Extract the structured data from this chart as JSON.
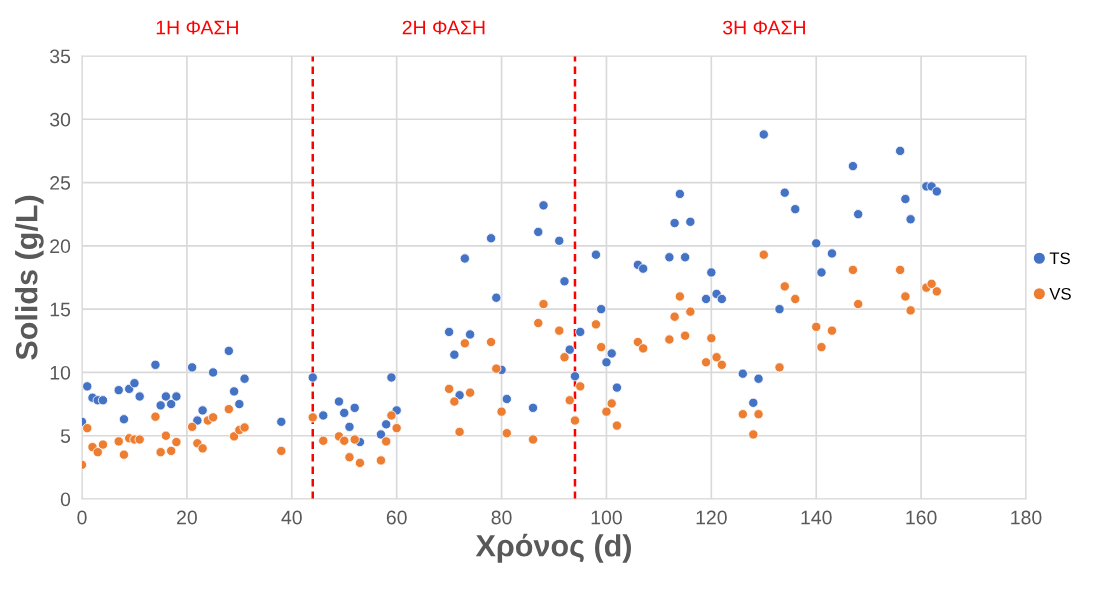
{
  "chart_data": {
    "type": "scatter",
    "xlabel": "Χρόνος (d)",
    "ylabel": "Solids (g/L)",
    "xlim": [
      0,
      180
    ],
    "xticks": [
      0,
      20,
      40,
      60,
      80,
      100,
      120,
      140,
      160,
      180
    ],
    "ylim": [
      0,
      35
    ],
    "yticks": [
      0,
      5,
      10,
      15,
      20,
      25,
      30,
      35
    ],
    "grid": true,
    "legend": "right",
    "marker": "circle",
    "annotations": [
      "1Η ΦΑΣΗ",
      "2Η ΦΑΣΗ",
      "3Η ΦΑΣΗ"
    ],
    "ref_lines": [
      {
        "axis": "x",
        "value": 44,
        "color": "#ff0000",
        "line_style": "dashed"
      },
      {
        "axis": "x",
        "value": 94,
        "color": "#ff0000",
        "line_style": "dashed"
      }
    ],
    "series": [
      {
        "name": "TS",
        "color": "#4472c4",
        "x": [
          0,
          1,
          2,
          3,
          4,
          7,
          8,
          9,
          10,
          11,
          14,
          15,
          16,
          17,
          18,
          21,
          22,
          23,
          25,
          28,
          29,
          30,
          31,
          38,
          44,
          46,
          49,
          50,
          51,
          52,
          53,
          57,
          58,
          59,
          60,
          70,
          71,
          72,
          73,
          74,
          78,
          79,
          80,
          81,
          86,
          87,
          88,
          91,
          92,
          93,
          94,
          95,
          98,
          99,
          100,
          101,
          102,
          106,
          107,
          112,
          113,
          114,
          115,
          116,
          119,
          120,
          121,
          122,
          126,
          128,
          129,
          130,
          133,
          134,
          136,
          140,
          141,
          143,
          147,
          148,
          156,
          157,
          158,
          161,
          162,
          163
        ],
        "values": [
          6.1,
          8.9,
          8.0,
          7.8,
          7.8,
          8.6,
          6.3,
          8.7,
          9.15,
          8.1,
          10.6,
          7.4,
          8.1,
          7.5,
          8.1,
          10.4,
          6.2,
          7.0,
          10.0,
          11.7,
          8.5,
          7.5,
          9.5,
          6.1,
          9.6,
          6.6,
          7.7,
          6.8,
          5.7,
          7.2,
          4.5,
          5.1,
          5.9,
          9.6,
          7.0,
          13.2,
          11.4,
          8.2,
          19.0,
          13.0,
          20.6,
          15.9,
          10.2,
          7.9,
          7.2,
          21.1,
          23.2,
          20.4,
          17.2,
          11.8,
          9.7,
          13.2,
          19.3,
          15.0,
          10.8,
          11.5,
          8.8,
          18.5,
          18.2,
          19.1,
          21.8,
          24.1,
          19.1,
          21.9,
          15.8,
          17.9,
          16.2,
          15.8,
          9.9,
          7.6,
          9.5,
          28.8,
          15.0,
          24.2,
          22.9,
          20.2,
          17.9,
          19.4,
          26.3,
          22.5,
          27.5,
          23.7,
          22.1,
          24.7,
          24.7,
          24.3
        ]
      },
      {
        "name": "VS",
        "color": "#ed7d31",
        "x": [
          0,
          1,
          2,
          3,
          4,
          7,
          8,
          9,
          10,
          11,
          14,
          15,
          16,
          17,
          18,
          21,
          22,
          23,
          24,
          25,
          28,
          29,
          30,
          31,
          38,
          44,
          46,
          49,
          50,
          51,
          52,
          53,
          57,
          58,
          59,
          60,
          70,
          71,
          72,
          73,
          74,
          78,
          79,
          80,
          81,
          86,
          87,
          88,
          91,
          92,
          93,
          94,
          95,
          98,
          99,
          100,
          101,
          102,
          106,
          107,
          112,
          113,
          114,
          115,
          116,
          119,
          120,
          121,
          122,
          126,
          128,
          129,
          130,
          133,
          134,
          136,
          140,
          141,
          143,
          147,
          148,
          156,
          157,
          158,
          161,
          162,
          163
        ],
        "values": [
          2.7,
          5.6,
          4.1,
          3.7,
          4.3,
          4.55,
          3.5,
          4.8,
          4.7,
          4.7,
          6.5,
          3.7,
          5.0,
          3.8,
          4.5,
          5.7,
          4.4,
          4.0,
          6.2,
          6.45,
          7.1,
          4.95,
          5.45,
          5.65,
          3.8,
          6.45,
          4.6,
          4.95,
          4.6,
          3.3,
          4.7,
          2.85,
          3.05,
          4.55,
          6.6,
          5.6,
          8.7,
          7.7,
          5.3,
          12.3,
          8.4,
          12.4,
          10.3,
          6.9,
          5.2,
          4.7,
          13.9,
          15.4,
          13.3,
          11.2,
          7.8,
          6.2,
          8.9,
          13.8,
          12.0,
          6.9,
          7.55,
          5.8,
          12.4,
          11.9,
          12.6,
          14.4,
          16.0,
          12.9,
          14.8,
          10.8,
          12.7,
          11.2,
          10.6,
          6.7,
          5.1,
          6.7,
          19.3,
          10.4,
          16.8,
          15.8,
          13.6,
          12.0,
          13.3,
          18.1,
          15.4,
          18.1,
          16.0,
          14.9,
          16.7,
          17.0,
          16.4
        ]
      }
    ]
  }
}
